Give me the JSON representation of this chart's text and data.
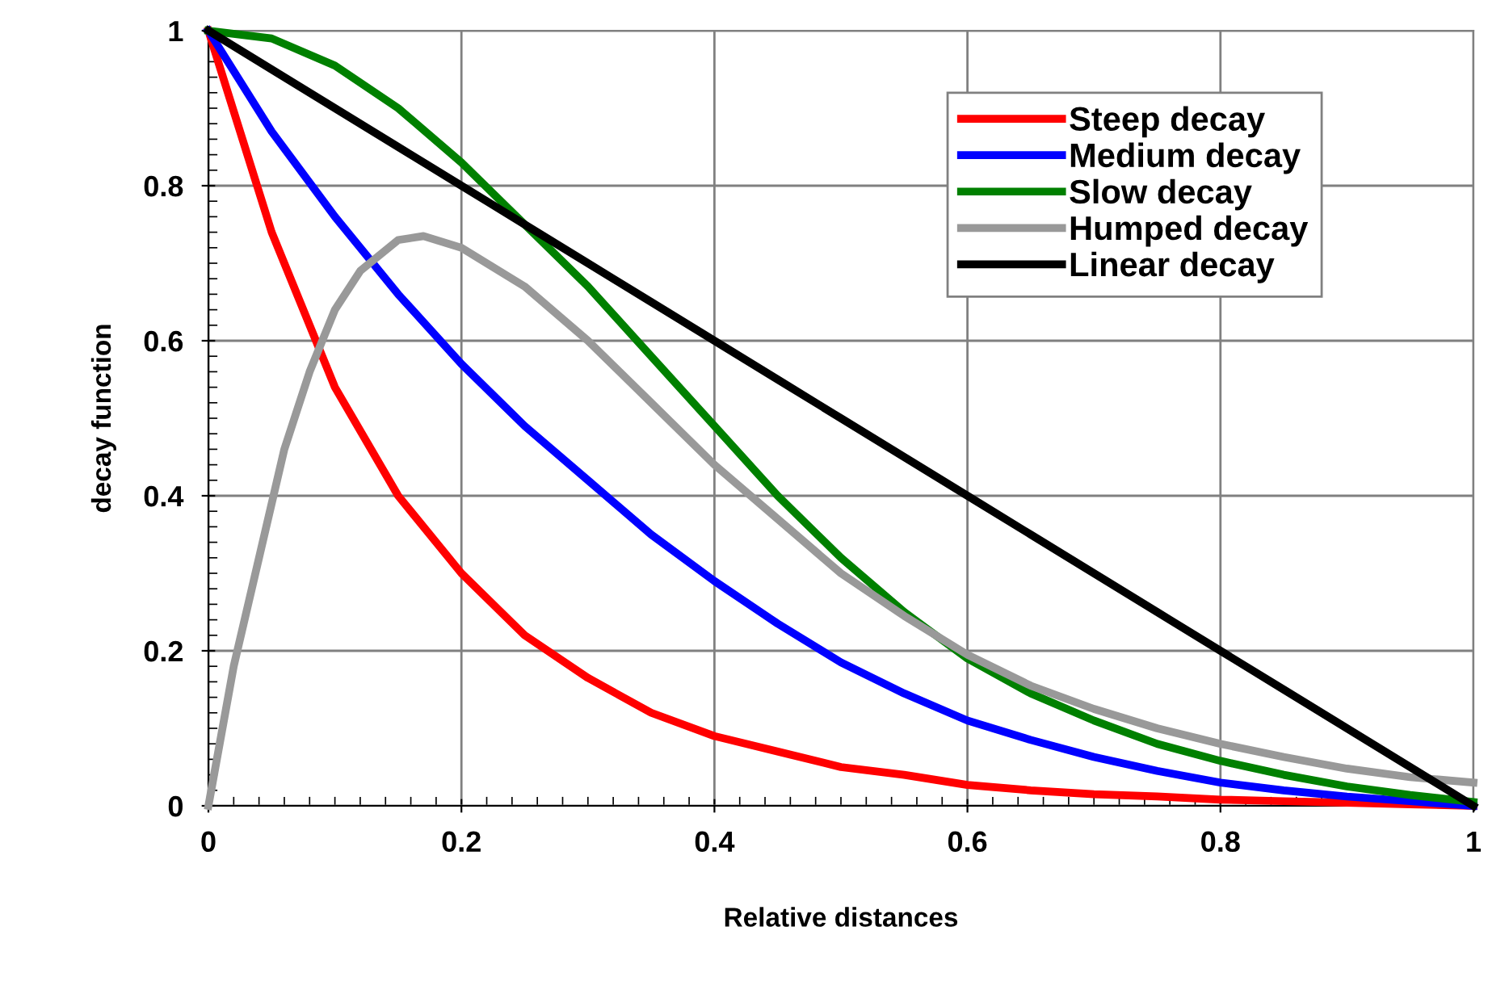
{
  "chart_data": {
    "type": "line",
    "xlabel": "Relative distances",
    "ylabel": "decay function",
    "xlim": [
      0,
      1
    ],
    "ylim": [
      0,
      1
    ],
    "xticks": [
      0,
      0.2,
      0.4,
      0.6,
      0.8,
      1
    ],
    "yticks": [
      0,
      0.2,
      0.4,
      0.6,
      0.8,
      1
    ],
    "grid": true,
    "legend": "top right",
    "marker": "none",
    "line_style": "solid",
    "x": [
      0,
      0.05,
      0.1,
      0.15,
      0.2,
      0.25,
      0.3,
      0.35,
      0.4,
      0.45,
      0.5,
      0.55,
      0.6,
      0.65,
      0.7,
      0.75,
      0.8,
      0.85,
      0.9,
      0.95,
      1
    ],
    "series": [
      {
        "name": "Steep decay",
        "color": "#ff0000",
        "values": [
          1,
          0.74,
          0.54,
          0.4,
          0.3,
          0.22,
          0.165,
          0.12,
          0.09,
          0.07,
          0.05,
          0.04,
          0.027,
          0.02,
          0.015,
          0.012,
          0.008,
          0.006,
          0.004,
          0.002,
          0
        ]
      },
      {
        "name": "Medium decay",
        "color": "#0000ff",
        "values": [
          1,
          0.87,
          0.76,
          0.66,
          0.57,
          0.49,
          0.42,
          0.35,
          0.29,
          0.235,
          0.185,
          0.145,
          0.11,
          0.085,
          0.063,
          0.045,
          0.03,
          0.02,
          0.012,
          0.006,
          0
        ]
      },
      {
        "name": "Slow decay",
        "color": "#008000",
        "values": [
          1,
          0.99,
          0.955,
          0.9,
          0.83,
          0.75,
          0.67,
          0.58,
          0.49,
          0.4,
          0.32,
          0.25,
          0.19,
          0.145,
          0.11,
          0.08,
          0.058,
          0.04,
          0.025,
          0.014,
          0.005
        ]
      },
      {
        "name": "Humped decay",
        "color": "#999999",
        "x": [
          0,
          0.02,
          0.04,
          0.06,
          0.08,
          0.1,
          0.12,
          0.15,
          0.17,
          0.2,
          0.25,
          0.3,
          0.35,
          0.4,
          0.45,
          0.5,
          0.55,
          0.6,
          0.65,
          0.7,
          0.75,
          0.8,
          0.85,
          0.9,
          0.95,
          1
        ],
        "values": [
          0,
          0.18,
          0.32,
          0.46,
          0.56,
          0.64,
          0.69,
          0.73,
          0.735,
          0.72,
          0.67,
          0.6,
          0.52,
          0.44,
          0.37,
          0.3,
          0.245,
          0.195,
          0.155,
          0.125,
          0.1,
          0.08,
          0.063,
          0.048,
          0.037,
          0.03
        ]
      },
      {
        "name": "Linear decay",
        "color": "#000000",
        "values": [
          1,
          0.95,
          0.9,
          0.85,
          0.8,
          0.75,
          0.7,
          0.65,
          0.6,
          0.55,
          0.5,
          0.45,
          0.4,
          0.35,
          0.3,
          0.25,
          0.2,
          0.15,
          0.1,
          0.05,
          0
        ]
      }
    ]
  }
}
